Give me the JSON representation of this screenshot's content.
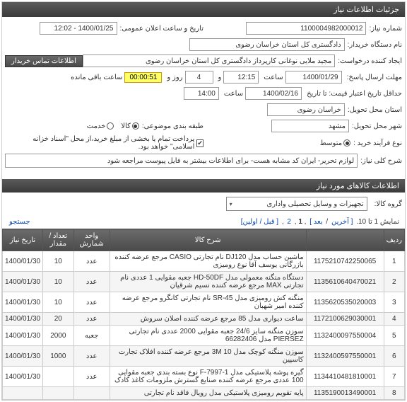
{
  "header": {
    "title": "جزئیات اطلاعات نیاز"
  },
  "form": {
    "need_no_lbl": "شماره نیاز:",
    "need_no": "1100004982000012",
    "announce_lbl": "تاریخ و ساعت اعلان عمومی:",
    "announce": "1400/01/25 - 12:02",
    "buyer_org_lbl": "نام دستگاه خریدار:",
    "buyer_org": "دادگستری کل استان خراسان رضوی",
    "creator_lbl": "ایجاد کننده درخواست:",
    "creator": "مجید ملایی نوغانی کارپرداز دادگستری کل استان خراسان رضوی",
    "contact_btn": "اطلاعات تماس خریدار",
    "deadline_lbl": "مهلت ارسال پاسخ:",
    "deadline_date": "1400/01/29",
    "hour_lbl": "ساعت",
    "deadline_hour": "12:15",
    "and_lbl": "و",
    "days_val": "4",
    "days_lbl": "روز و",
    "timer": "00:00:51",
    "remain_lbl": "ساعت باقی مانده",
    "price_valid_lbl": "حداقل تاریخ اعتبار قیمت: تا تاریخ",
    "price_valid_date": "1400/02/16",
    "price_valid_hour": "14:00",
    "delivery_prov_lbl": "استان محل تحویل:",
    "delivery_prov": "خراسان رضوی",
    "delivery_city_lbl": "شهر محل تحویل:",
    "delivery_city": "مشهد",
    "pkg_lbl": "طبقه بندی موضوعی:",
    "type_lbl": "نوع فرآیند خرید :",
    "goods_lbl": "کالا",
    "service_lbl": "خدمت",
    "mid_lbl": "متوسط",
    "note": "پرداخت تمام یا بخشی از مبلغ خرید،از محل \"اسناد خزانه اسلامی\" خواهد بود.",
    "desc_lbl": "شرح کلی نیاز:",
    "desc": "لوازم تحریر- ایران کد مشابه هست- برای اطلاعات بیشتر به فایل پیوست مراجعه شود"
  },
  "items_header": "اطلاعات کالاهای مورد نیاز",
  "group_lbl": "گروه کالا:",
  "group_val": "تجهیزات و وسایل تحصیلی واداری",
  "pager": {
    "showing": "نمایش 1 تا 10.",
    "prev": "[ آخرین",
    "next": "بعد ]",
    "p1": "1",
    "p2": "2",
    "first": "[ قبل / اولین]",
    "search": "جستجو"
  },
  "table": {
    "cols": [
      "ردیف",
      "",
      "شرح کالا",
      "واحد شمارش",
      "تعداد / مقدار",
      "تاریخ نیاز"
    ],
    "rows": [
      {
        "n": "1",
        "code": "1175210742250065",
        "desc": "ماشین حساب مدل DJ120 نام تجارتی CASIO مرجع عرضه کننده بازرگانی یوسف آقا نوع رومیزی",
        "unit": "عدد",
        "qty": "10",
        "date": "1400/01/30"
      },
      {
        "n": "2",
        "code": "1135610640470021",
        "desc": "دستگاه منگنه معمولی مدل HD-50DF جعبه مقوایی 1 عددی نام تجارتی MAX مرجع عرضه کننده نسیم شرقیان",
        "unit": "عدد",
        "qty": "10",
        "date": "1400/01/30"
      },
      {
        "n": "3",
        "code": "1135620535020003",
        "desc": "منگنه کش رومیزی مدل SR-45 نام تجارتی کانگرو مرجع عرضه کننده امیر شهبان",
        "unit": "عدد",
        "qty": "10",
        "date": "1400/01/30"
      },
      {
        "n": "4",
        "code": "1172100629030001",
        "desc": "ساعت دیواری مدل 85 مرجع عرضه کننده اصلان سروش",
        "unit": "عدد",
        "qty": "20",
        "date": "1400/01/30"
      },
      {
        "n": "5",
        "code": "1132400097550004",
        "desc": "سوزن منگنه سایز 24/6 جعبه مقوایی 2000 عددی نام تجارتی PIERSEZ مدل 66282406",
        "unit": "جعبه",
        "qty": "2000",
        "date": "1400/01/30"
      },
      {
        "n": "6",
        "code": "1132400597550001",
        "desc": "سوزن منگنه کوچک مدل 3M 10 مرجع عرضه کننده افلاک تجارت کاسپین",
        "unit": "عدد",
        "qty": "1000",
        "date": "1400/01/30"
      },
      {
        "n": "7",
        "code": "1134410481810001",
        "desc": "گیره پوشه پلاستیکی مدل F-7997-1 نوع بسته بندی جعبه مقوایی 100 عددی مرجع عرضه کننده صنایع گسترش ملزومات کاغذ کادک",
        "unit": "عدد",
        "qty": "",
        "date": "1400/01/30"
      },
      {
        "n": "8",
        "code": "1135190013490001",
        "desc": "پایه تقویم رومیزی پلاستیکی مدل رویال فاقد نام تجارتی",
        "unit": "",
        "qty": "",
        "date": ""
      }
    ]
  }
}
